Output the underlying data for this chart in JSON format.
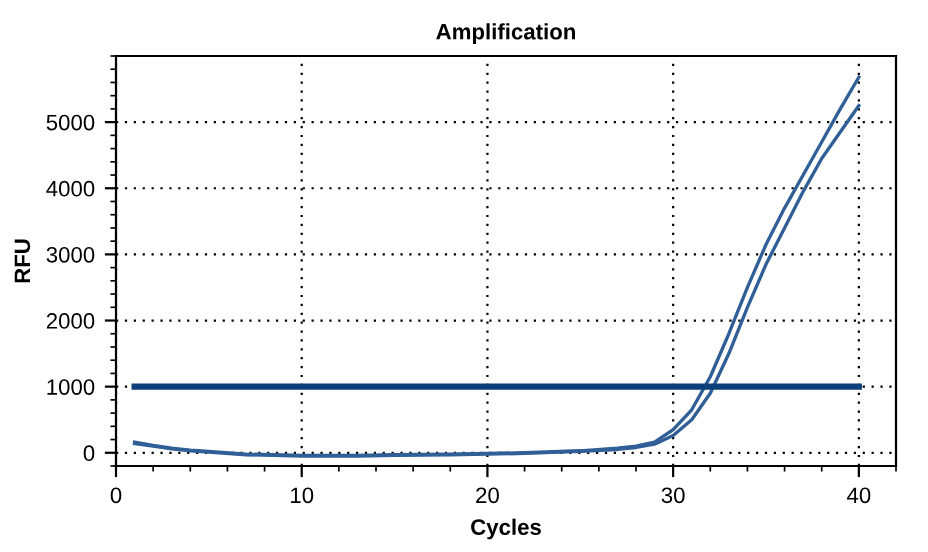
{
  "chart_data": {
    "type": "line",
    "title": "Amplification",
    "xlabel": "Cycles",
    "ylabel": "RFU",
    "xlim": [
      0,
      42
    ],
    "xticks": [
      0,
      10,
      20,
      30,
      40
    ],
    "ylim": [
      -200,
      6000
    ],
    "yticks": [
      0,
      1000,
      2000,
      3000,
      4000,
      5000
    ],
    "grid": true,
    "marker": "none",
    "line_style": "solid",
    "series": [
      {
        "color": "#2f5f96",
        "x": [
          1,
          2,
          3,
          4,
          5,
          7,
          10,
          13,
          15,
          18,
          20,
          22,
          25,
          27,
          28,
          29,
          30,
          31,
          32,
          33,
          34,
          35,
          36,
          37,
          38,
          39,
          40
        ],
        "values": [
          160,
          110,
          70,
          40,
          20,
          -20,
          -40,
          -40,
          -30,
          -20,
          -10,
          0,
          30,
          70,
          100,
          160,
          350,
          650,
          1150,
          1800,
          2500,
          3150,
          3700,
          4200,
          4700,
          5200,
          5680
        ]
      },
      {
        "color": "#2f5f96",
        "x": [
          1,
          2,
          3,
          4,
          5,
          7,
          10,
          13,
          15,
          18,
          20,
          22,
          25,
          27,
          28,
          29,
          30,
          31,
          32,
          33,
          34,
          35,
          36,
          37,
          38,
          39,
          40
        ],
        "values": [
          140,
          100,
          60,
          30,
          10,
          -30,
          -50,
          -50,
          -40,
          -30,
          -20,
          -10,
          20,
          50,
          80,
          130,
          260,
          500,
          900,
          1500,
          2200,
          2850,
          3400,
          3950,
          4450,
          4850,
          5250
        ]
      },
      {
        "color": "#0a3f7a",
        "x": [
          1,
          40
        ],
        "values": [
          1000,
          1000
        ]
      }
    ]
  }
}
